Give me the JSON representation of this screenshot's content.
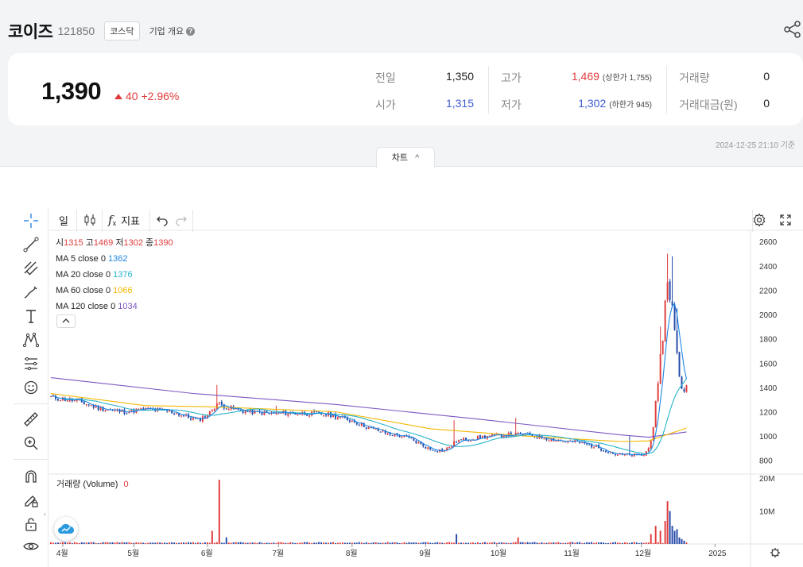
{
  "header": {
    "name": "코이즈",
    "code": "121850",
    "market": "코스닥",
    "company_link": "기업 개요",
    "help_glyph": "?"
  },
  "quote": {
    "price": "1,390",
    "change": "40 +2.96%",
    "prev_close_label": "전일",
    "prev_close": "1,350",
    "open_label": "시가",
    "open": "1,315",
    "high_label": "고가",
    "high": "1,469",
    "upper_limit": "(상한가 1,755)",
    "low_label": "저가",
    "low": "1,302",
    "lower_limit": "(하한가 945)",
    "volume_label": "거래량",
    "volume": "0",
    "amount_label": "거래대금(원)",
    "amount": "0"
  },
  "timestamp": "2024-12-25 21:10 기준",
  "tab": {
    "label": "차트",
    "chevron": "^"
  },
  "toolbar": {
    "period": "일",
    "indicator": "지표",
    "fx": "f"
  },
  "legend": {
    "o_label": "시",
    "o": "1315",
    "h_label": "고",
    "h": "1469",
    "l_label": "저",
    "l": "1302",
    "c_label": "종",
    "c": "1390",
    "ma": [
      {
        "label": "MA 5 close 0",
        "value": "1362",
        "color": "#1e88e5"
      },
      {
        "label": "MA 20 close 0",
        "value": "1376",
        "color": "#26b3c9"
      },
      {
        "label": "MA 60 close 0",
        "value": "1066",
        "color": "#f5b700"
      },
      {
        "label": "MA 120 close 0",
        "value": "1034",
        "color": "#7e57c2"
      }
    ]
  },
  "volume_legend": {
    "label": "거래량 (Volume)",
    "value": "0"
  },
  "colors": {
    "up": "#e03b3b",
    "down": "#2349a8",
    "accent_blue": "#3d5ad1"
  },
  "chart_data": {
    "type": "candlestick",
    "price_axis": {
      "ticks": [
        800,
        1000,
        1200,
        1400,
        1600,
        1800,
        2000,
        2200,
        2400,
        2600
      ],
      "range": [
        700,
        2680
      ]
    },
    "volume_axis": {
      "ticks": [
        "10M",
        "20M"
      ],
      "tick_values": [
        10,
        20
      ],
      "unit": "M",
      "range": [
        0,
        21
      ]
    },
    "x_labels": [
      {
        "label": "4월",
        "day": 5
      },
      {
        "label": "5월",
        "day": 35
      },
      {
        "label": "6월",
        "day": 66
      },
      {
        "label": "7월",
        "day": 96
      },
      {
        "label": "8월",
        "day": 127
      },
      {
        "label": "9월",
        "day": 158
      },
      {
        "label": "10월",
        "day": 188
      },
      {
        "label": "11월",
        "day": 219
      },
      {
        "label": "12월",
        "day": 249
      },
      {
        "label": "2025",
        "day": 280
      }
    ],
    "day_range": [
      0,
      295
    ],
    "last_day": 268,
    "anchors": [
      [
        0,
        1320
      ],
      [
        12,
        1285
      ],
      [
        20,
        1230
      ],
      [
        30,
        1200
      ],
      [
        40,
        1220
      ],
      [
        50,
        1205
      ],
      [
        62,
        1130
      ],
      [
        67,
        1190
      ],
      [
        70,
        1270
      ],
      [
        75,
        1230
      ],
      [
        83,
        1200
      ],
      [
        92,
        1185
      ],
      [
        98,
        1190
      ],
      [
        108,
        1185
      ],
      [
        118,
        1175
      ],
      [
        128,
        1120
      ],
      [
        135,
        1060
      ],
      [
        142,
        1020
      ],
      [
        150,
        990
      ],
      [
        160,
        890
      ],
      [
        166,
        880
      ],
      [
        171,
        960
      ],
      [
        178,
        980
      ],
      [
        185,
        1000
      ],
      [
        193,
        1010
      ],
      [
        200,
        1015
      ],
      [
        208,
        985
      ],
      [
        215,
        960
      ],
      [
        222,
        950
      ],
      [
        230,
        910
      ],
      [
        238,
        850
      ],
      [
        246,
        840
      ],
      [
        250,
        845
      ],
      [
        252,
        900
      ],
      [
        254,
        1100
      ],
      [
        256,
        1380
      ],
      [
        258,
        1850
      ],
      [
        260,
        2300
      ],
      [
        262,
        2050
      ],
      [
        264,
        1650
      ],
      [
        266,
        1400
      ],
      [
        268,
        1390
      ]
    ],
    "spikes": [
      {
        "day": 70,
        "high": 1420
      },
      {
        "day": 95,
        "high": 1250
      },
      {
        "day": 170,
        "high": 1130
      },
      {
        "day": 196,
        "high": 1150
      },
      {
        "day": 244,
        "high": 1000
      },
      {
        "day": 257,
        "high": 1900
      },
      {
        "day": 260,
        "high": 2500
      },
      {
        "day": 262,
        "high": 2480
      },
      {
        "day": 264,
        "high": 2050
      }
    ],
    "volume_spikes": [
      {
        "day": 68,
        "value": 4
      },
      {
        "day": 71,
        "value": 19.5
      },
      {
        "day": 74,
        "value": 2
      },
      {
        "day": 171,
        "value": 3
      },
      {
        "day": 197,
        "value": 2
      },
      {
        "day": 253,
        "value": 3
      },
      {
        "day": 255,
        "value": 5.5
      },
      {
        "day": 257,
        "value": 4
      },
      {
        "day": 259,
        "value": 7
      },
      {
        "day": 260,
        "value": 13
      },
      {
        "day": 261,
        "value": 10
      },
      {
        "day": 262,
        "value": 5.5
      },
      {
        "day": 263,
        "value": 4
      },
      {
        "day": 264,
        "value": 4.5
      },
      {
        "day": 265,
        "value": 2
      },
      {
        "day": 266,
        "value": 1.5
      },
      {
        "day": 267,
        "value": 1
      }
    ],
    "ma_series": [
      {
        "name": "MA 120",
        "points": [
          [
            0,
            1480
          ],
          [
            60,
            1350
          ],
          [
            120,
            1260
          ],
          [
            180,
            1140
          ],
          [
            240,
            1010
          ],
          [
            252,
            990
          ],
          [
            268,
            1034
          ]
        ]
      },
      {
        "name": "MA 60",
        "points": [
          [
            0,
            1350
          ],
          [
            40,
            1250
          ],
          [
            70,
            1240
          ],
          [
            120,
            1200
          ],
          [
            160,
            1060
          ],
          [
            200,
            1000
          ],
          [
            240,
            955
          ],
          [
            252,
            960
          ],
          [
            268,
            1066
          ]
        ]
      }
    ]
  }
}
